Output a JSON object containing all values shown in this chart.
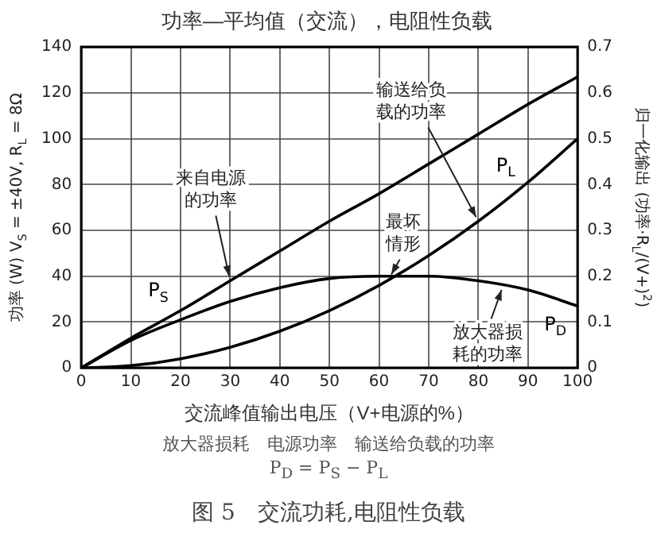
{
  "chart_data": {
    "type": "line",
    "title": "功率—平均值（交流），电阻性负载",
    "xlabel": "交流峰值输出电压（V+电源的%）",
    "ylabel": "功率 (W) V$_{S}$ = ±40V, R$_{L}$ = 8Ω",
    "y2label": "归一化输出 (功率·R$_{L}$/(V+)$^{2}$)",
    "x": [
      0,
      10,
      20,
      30,
      40,
      50,
      60,
      70,
      80,
      90,
      100
    ],
    "series": [
      {
        "name": "P$_{S}$",
        "color": "#000000",
        "values": [
          0,
          13,
          25,
          38,
          51,
          64,
          76,
          89,
          102,
          115,
          127
        ]
      },
      {
        "name": "P$_{L}$",
        "color": "#000000",
        "values": [
          0,
          1,
          4,
          9,
          16,
          25,
          36,
          49,
          64,
          81,
          100
        ]
      },
      {
        "name": "P$_{D}$",
        "color": "#000000",
        "values": [
          0,
          12,
          21,
          29,
          35,
          39,
          40,
          40,
          38,
          34,
          27
        ]
      }
    ],
    "xlim": [
      0,
      100
    ],
    "xticks": [
      0,
      10,
      20,
      30,
      40,
      50,
      60,
      70,
      80,
      90,
      100
    ],
    "ylim": [
      0,
      140
    ],
    "yticks": [
      0,
      20,
      40,
      60,
      80,
      100,
      120,
      140
    ],
    "y2lim": [
      0,
      0.7
    ],
    "y2ticks": [
      0,
      0.1,
      0.2,
      0.3,
      0.4,
      0.5,
      0.6,
      0.7
    ],
    "grid": true,
    "legend": false,
    "marker": "none",
    "line_style": "solid",
    "annotations": [
      {
        "text": "来自电源的功率",
        "x": 30,
        "y": 38
      },
      {
        "text": "输送给负载的功率",
        "x": 80,
        "y": 64
      },
      {
        "text": "最坏情形",
        "x": 62,
        "y": 39
      },
      {
        "text": "放大器损耗的功率",
        "x": 85,
        "y": 36
      },
      "放大器损耗　电源功率　输送给负载的功率",
      "P$_{D}$ = P$_{S}$ − P$_{L}$",
      "图 5　交流功耗,电阻性负载"
    ]
  }
}
